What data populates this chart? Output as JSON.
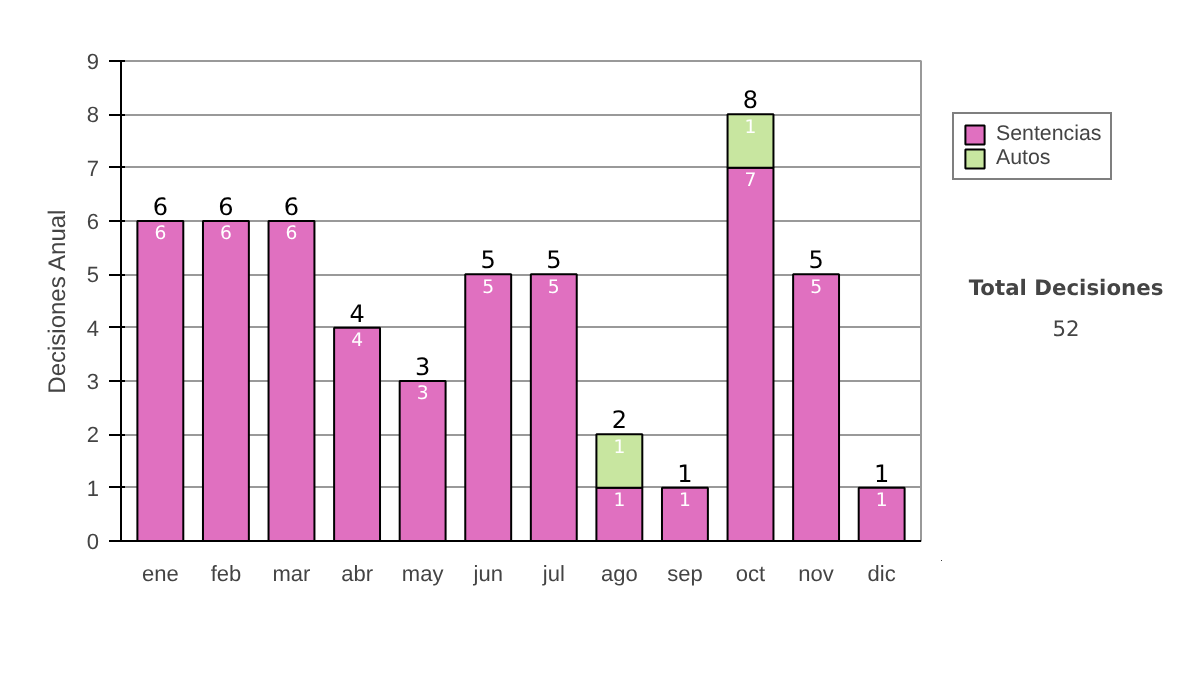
{
  "chart_data": {
    "type": "bar",
    "stacked": true,
    "ylabel": "Decisiones Anual",
    "categories": [
      "ene",
      "feb",
      "mar",
      "abr",
      "may",
      "jun",
      "jul",
      "ago",
      "sep",
      "oct",
      "nov",
      "dic"
    ],
    "series": [
      {
        "name": "Sentencias",
        "color": "#e070c0",
        "values": [
          6,
          6,
          6,
          4,
          3,
          5,
          5,
          1,
          1,
          7,
          5,
          1
        ]
      },
      {
        "name": "Autos",
        "color": "#c8e6a0",
        "values": [
          null,
          null,
          null,
          null,
          null,
          null,
          null,
          1,
          null,
          1,
          null,
          null
        ]
      }
    ],
    "totals": [
      "6",
      "6",
      "6",
      "4",
      "3",
      "5",
      "5",
      "2",
      "1",
      "8",
      "5",
      "1"
    ],
    "data_labels": true,
    "ylim": [
      0,
      9
    ],
    "yticks": [
      0,
      1,
      2,
      3,
      4,
      5,
      6,
      7,
      8,
      9
    ],
    "grid": "y",
    "legend": "right",
    "annotations": [
      "Total Decisiones",
      "52"
    ]
  }
}
